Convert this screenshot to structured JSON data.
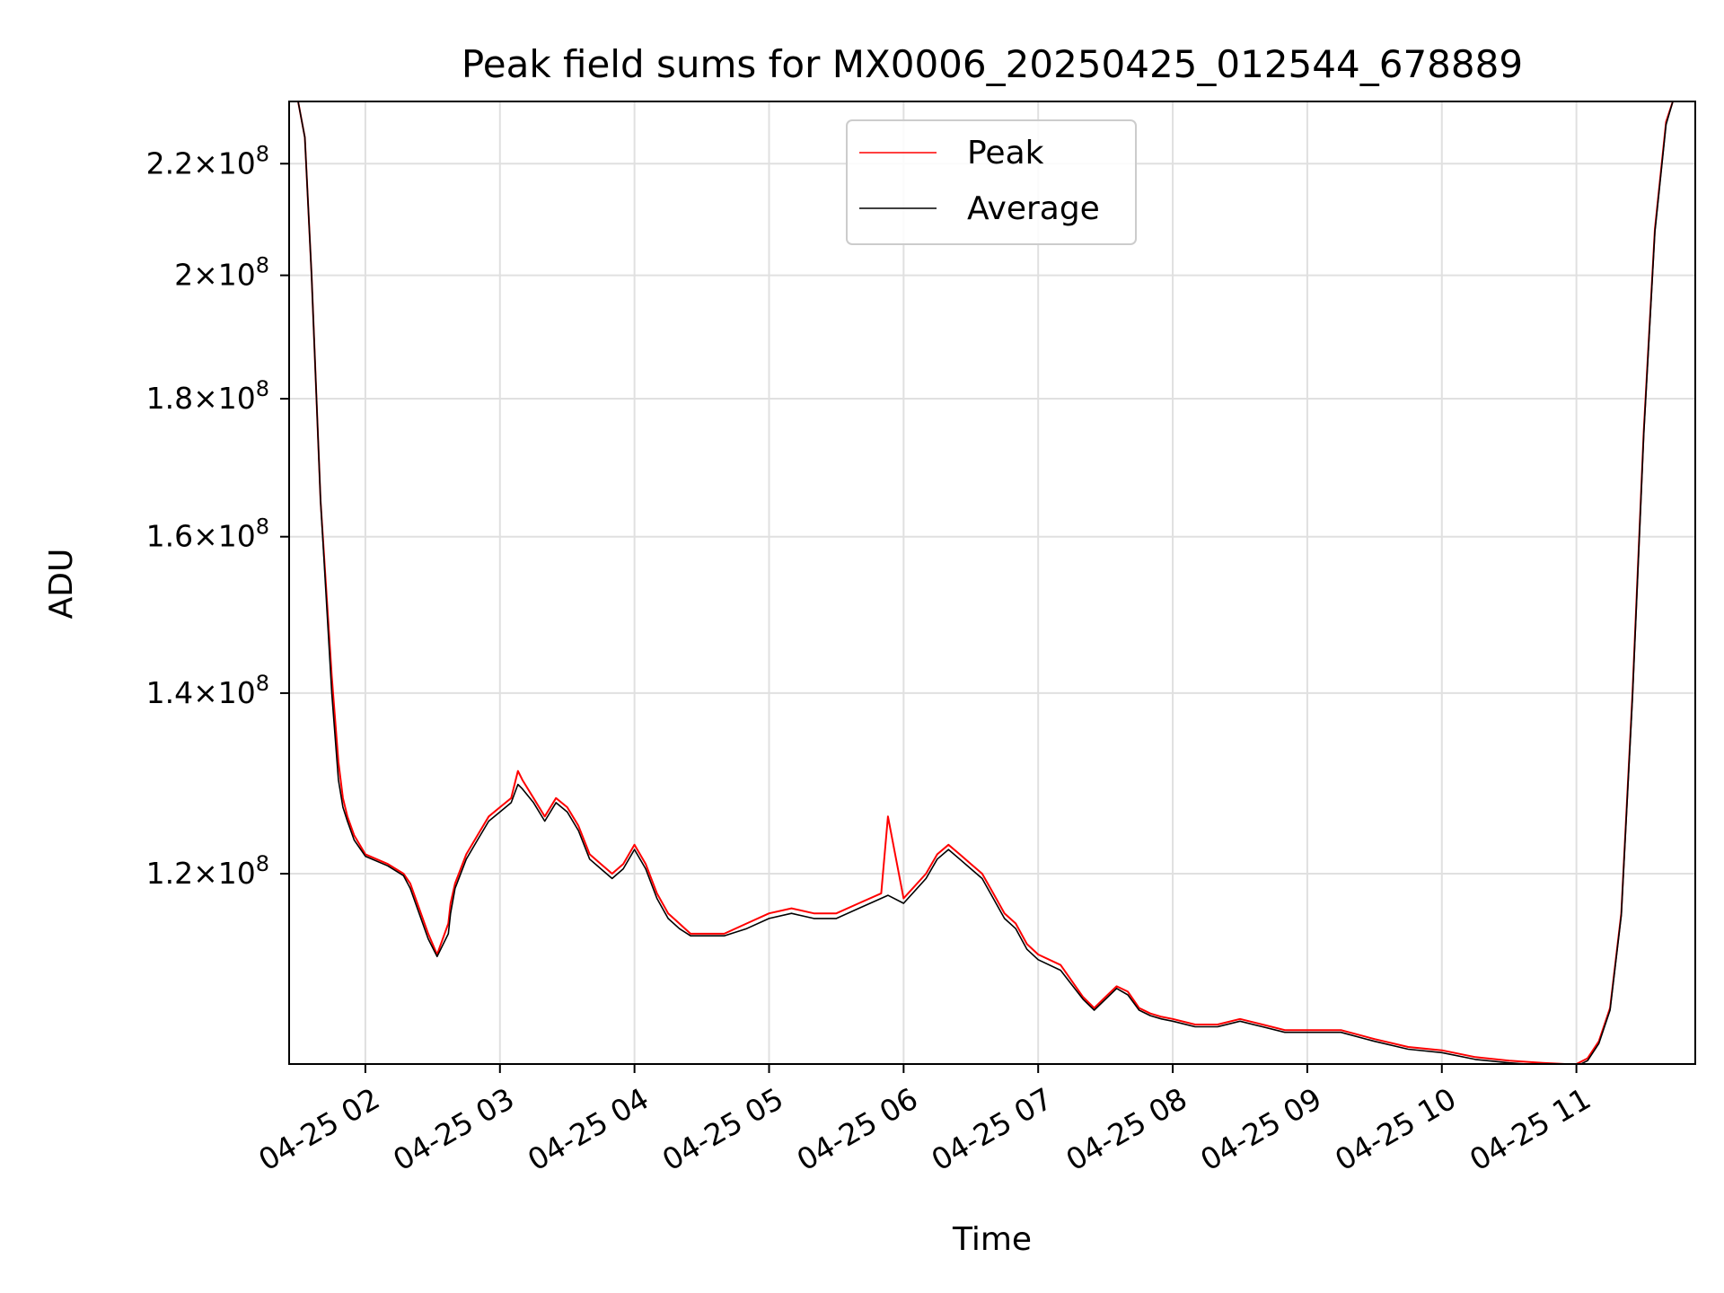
{
  "chart_data": {
    "type": "line",
    "title": "Peak field sums for MX0006_20250425_012544_678889",
    "xlabel": "Time",
    "ylabel": "ADU",
    "y_scale": "log",
    "x_scale": "time",
    "grid": true,
    "legend_position": "top-center",
    "xlim": [
      "2025-04-25 01:26",
      "2025-04-25 11:53"
    ],
    "ylim": [
      102000000,
      232000000
    ],
    "x_ticks": [
      {
        "value": "2025-04-25 02:00",
        "label": "04-25 02"
      },
      {
        "value": "2025-04-25 03:00",
        "label": "04-25 03"
      },
      {
        "value": "2025-04-25 04:00",
        "label": "04-25 04"
      },
      {
        "value": "2025-04-25 05:00",
        "label": "04-25 05"
      },
      {
        "value": "2025-04-25 06:00",
        "label": "04-25 06"
      },
      {
        "value": "2025-04-25 07:00",
        "label": "04-25 07"
      },
      {
        "value": "2025-04-25 08:00",
        "label": "04-25 08"
      },
      {
        "value": "2025-04-25 09:00",
        "label": "04-25 09"
      },
      {
        "value": "2025-04-25 10:00",
        "label": "04-25 10"
      },
      {
        "value": "2025-04-25 11:00",
        "label": "04-25 11"
      }
    ],
    "y_ticks": [
      {
        "value": 120000000,
        "mantissa": "1.2",
        "base": "10",
        "exponent": "8"
      },
      {
        "value": 140000000,
        "mantissa": "1.4",
        "base": "10",
        "exponent": "8"
      },
      {
        "value": 160000000,
        "mantissa": "1.6",
        "base": "10",
        "exponent": "8"
      },
      {
        "value": 180000000,
        "mantissa": "1.8",
        "base": "10",
        "exponent": "8"
      },
      {
        "value": 200000000,
        "mantissa": "2",
        "base": "10",
        "exponent": "8"
      },
      {
        "value": 220000000,
        "mantissa": "2.2",
        "base": "10",
        "exponent": "8"
      }
    ],
    "series": [
      {
        "name": "Peak",
        "color": "#ff0000",
        "x": [
          "2025-04-25 01:30",
          "2025-04-25 01:33",
          "2025-04-25 01:36",
          "2025-04-25 01:40",
          "2025-04-25 01:45",
          "2025-04-25 01:48",
          "2025-04-25 01:50",
          "2025-04-25 01:52",
          "2025-04-25 01:55",
          "2025-04-25 02:00",
          "2025-04-25 02:10",
          "2025-04-25 02:17",
          "2025-04-25 02:20",
          "2025-04-25 02:28",
          "2025-04-25 02:32",
          "2025-04-25 02:37",
          "2025-04-25 02:38",
          "2025-04-25 02:40",
          "2025-04-25 02:45",
          "2025-04-25 02:50",
          "2025-04-25 02:55",
          "2025-04-25 03:00",
          "2025-04-25 03:05",
          "2025-04-25 03:08",
          "2025-04-25 03:10",
          "2025-04-25 03:15",
          "2025-04-25 03:20",
          "2025-04-25 03:25",
          "2025-04-25 03:30",
          "2025-04-25 03:35",
          "2025-04-25 03:40",
          "2025-04-25 03:45",
          "2025-04-25 03:50",
          "2025-04-25 03:55",
          "2025-04-25 04:00",
          "2025-04-25 04:05",
          "2025-04-25 04:10",
          "2025-04-25 04:15",
          "2025-04-25 04:20",
          "2025-04-25 04:25",
          "2025-04-25 04:30",
          "2025-04-25 04:40",
          "2025-04-25 04:50",
          "2025-04-25 05:00",
          "2025-04-25 05:10",
          "2025-04-25 05:20",
          "2025-04-25 05:30",
          "2025-04-25 05:40",
          "2025-04-25 05:50",
          "2025-04-25 05:53",
          "2025-04-25 06:00",
          "2025-04-25 06:10",
          "2025-04-25 06:15",
          "2025-04-25 06:20",
          "2025-04-25 06:25",
          "2025-04-25 06:30",
          "2025-04-25 06:35",
          "2025-04-25 06:40",
          "2025-04-25 06:45",
          "2025-04-25 06:50",
          "2025-04-25 06:55",
          "2025-04-25 07:00",
          "2025-04-25 07:10",
          "2025-04-25 07:20",
          "2025-04-25 07:25",
          "2025-04-25 07:30",
          "2025-04-25 07:35",
          "2025-04-25 07:40",
          "2025-04-25 07:45",
          "2025-04-25 07:50",
          "2025-04-25 07:55",
          "2025-04-25 08:00",
          "2025-04-25 08:10",
          "2025-04-25 08:20",
          "2025-04-25 08:30",
          "2025-04-25 08:40",
          "2025-04-25 08:50",
          "2025-04-25 09:00",
          "2025-04-25 09:15",
          "2025-04-25 09:30",
          "2025-04-25 09:45",
          "2025-04-25 10:00",
          "2025-04-25 10:15",
          "2025-04-25 10:30",
          "2025-04-25 10:45",
          "2025-04-25 10:55",
          "2025-04-25 11:00",
          "2025-04-25 11:05",
          "2025-04-25 11:10",
          "2025-04-25 11:15",
          "2025-04-25 11:20",
          "2025-04-25 11:25",
          "2025-04-25 11:30",
          "2025-04-25 11:35",
          "2025-04-25 11:40",
          "2025-04-25 11:43",
          "2025-04-25 11:46"
        ],
        "y": [
          232000000,
          225000000,
          200000000,
          165000000,
          142000000,
          132000000,
          128000000,
          126000000,
          124000000,
          122000000,
          121000000,
          120000000,
          119000000,
          114000000,
          112000000,
          115000000,
          117000000,
          119000000,
          122000000,
          124000000,
          126000000,
          127000000,
          128000000,
          131000000,
          130000000,
          128000000,
          126000000,
          128000000,
          127000000,
          125000000,
          122000000,
          121000000,
          120000000,
          121000000,
          123000000,
          121000000,
          118000000,
          116000000,
          115000000,
          114000000,
          114000000,
          114000000,
          115000000,
          116000000,
          116500000,
          116000000,
          116000000,
          117000000,
          118000000,
          126000000,
          117500000,
          120000000,
          122000000,
          123000000,
          122000000,
          121000000,
          120000000,
          118000000,
          116000000,
          115000000,
          113000000,
          112000000,
          111000000,
          108000000,
          107000000,
          108000000,
          109000000,
          108500000,
          107000000,
          106500000,
          106200000,
          106000000,
          105500000,
          105500000,
          106000000,
          105500000,
          105000000,
          105000000,
          105000000,
          104200000,
          103500000,
          103200000,
          102600000,
          102300000,
          102100000,
          102000000,
          102000000,
          102500000,
          104000000,
          107000000,
          116000000,
          140000000,
          175000000,
          208000000,
          228000000,
          232000000,
          232000000
        ]
      },
      {
        "name": "Average",
        "color": "#000000",
        "x": [
          "2025-04-25 01:30",
          "2025-04-25 01:33",
          "2025-04-25 01:36",
          "2025-04-25 01:40",
          "2025-04-25 01:45",
          "2025-04-25 01:48",
          "2025-04-25 01:50",
          "2025-04-25 01:52",
          "2025-04-25 01:55",
          "2025-04-25 02:00",
          "2025-04-25 02:10",
          "2025-04-25 02:17",
          "2025-04-25 02:20",
          "2025-04-25 02:28",
          "2025-04-25 02:32",
          "2025-04-25 02:37",
          "2025-04-25 02:38",
          "2025-04-25 02:40",
          "2025-04-25 02:45",
          "2025-04-25 02:50",
          "2025-04-25 02:55",
          "2025-04-25 03:00",
          "2025-04-25 03:05",
          "2025-04-25 03:08",
          "2025-04-25 03:10",
          "2025-04-25 03:15",
          "2025-04-25 03:20",
          "2025-04-25 03:25",
          "2025-04-25 03:30",
          "2025-04-25 03:35",
          "2025-04-25 03:40",
          "2025-04-25 03:45",
          "2025-04-25 03:50",
          "2025-04-25 03:55",
          "2025-04-25 04:00",
          "2025-04-25 04:05",
          "2025-04-25 04:10",
          "2025-04-25 04:15",
          "2025-04-25 04:20",
          "2025-04-25 04:25",
          "2025-04-25 04:30",
          "2025-04-25 04:40",
          "2025-04-25 04:50",
          "2025-04-25 05:00",
          "2025-04-25 05:10",
          "2025-04-25 05:20",
          "2025-04-25 05:30",
          "2025-04-25 05:40",
          "2025-04-25 05:50",
          "2025-04-25 05:53",
          "2025-04-25 06:00",
          "2025-04-25 06:10",
          "2025-04-25 06:15",
          "2025-04-25 06:20",
          "2025-04-25 06:25",
          "2025-04-25 06:30",
          "2025-04-25 06:35",
          "2025-04-25 06:40",
          "2025-04-25 06:45",
          "2025-04-25 06:50",
          "2025-04-25 06:55",
          "2025-04-25 07:00",
          "2025-04-25 07:10",
          "2025-04-25 07:20",
          "2025-04-25 07:25",
          "2025-04-25 07:30",
          "2025-04-25 07:35",
          "2025-04-25 07:40",
          "2025-04-25 07:45",
          "2025-04-25 07:50",
          "2025-04-25 07:55",
          "2025-04-25 08:00",
          "2025-04-25 08:10",
          "2025-04-25 08:20",
          "2025-04-25 08:30",
          "2025-04-25 08:40",
          "2025-04-25 08:50",
          "2025-04-25 09:00",
          "2025-04-25 09:15",
          "2025-04-25 09:30",
          "2025-04-25 09:45",
          "2025-04-25 10:00",
          "2025-04-25 10:15",
          "2025-04-25 10:30",
          "2025-04-25 10:45",
          "2025-04-25 10:55",
          "2025-04-25 11:00",
          "2025-04-25 11:05",
          "2025-04-25 11:10",
          "2025-04-25 11:15",
          "2025-04-25 11:20",
          "2025-04-25 11:25",
          "2025-04-25 11:30",
          "2025-04-25 11:35",
          "2025-04-25 11:40",
          "2025-04-25 11:43",
          "2025-04-25 11:46"
        ],
        "y": [
          232000000,
          225000000,
          200000000,
          165000000,
          140000000,
          130000000,
          127000000,
          125500000,
          123500000,
          121800000,
          120800000,
          119800000,
          118500000,
          113500000,
          111800000,
          114000000,
          116000000,
          118500000,
          121500000,
          123500000,
          125500000,
          126500000,
          127500000,
          129500000,
          129000000,
          127500000,
          125500000,
          127500000,
          126500000,
          124500000,
          121500000,
          120500000,
          119500000,
          120500000,
          122500000,
          120500000,
          117500000,
          115500000,
          114500000,
          113800000,
          113800000,
          113800000,
          114500000,
          115500000,
          116000000,
          115500000,
          115500000,
          116500000,
          117500000,
          117800000,
          117000000,
          119500000,
          121500000,
          122500000,
          121500000,
          120500000,
          119500000,
          117500000,
          115500000,
          114500000,
          112500000,
          111500000,
          110500000,
          107800000,
          106800000,
          107800000,
          108800000,
          108200000,
          106800000,
          106300000,
          106000000,
          105800000,
          105300000,
          105300000,
          105800000,
          105300000,
          104800000,
          104800000,
          104800000,
          104000000,
          103300000,
          103000000,
          102400000,
          102100000,
          101900000,
          101800000,
          101800000,
          102300000,
          103800000,
          106800000,
          115800000,
          139500000,
          174500000,
          207500000,
          227500000,
          232000000,
          232000000
        ]
      }
    ]
  }
}
